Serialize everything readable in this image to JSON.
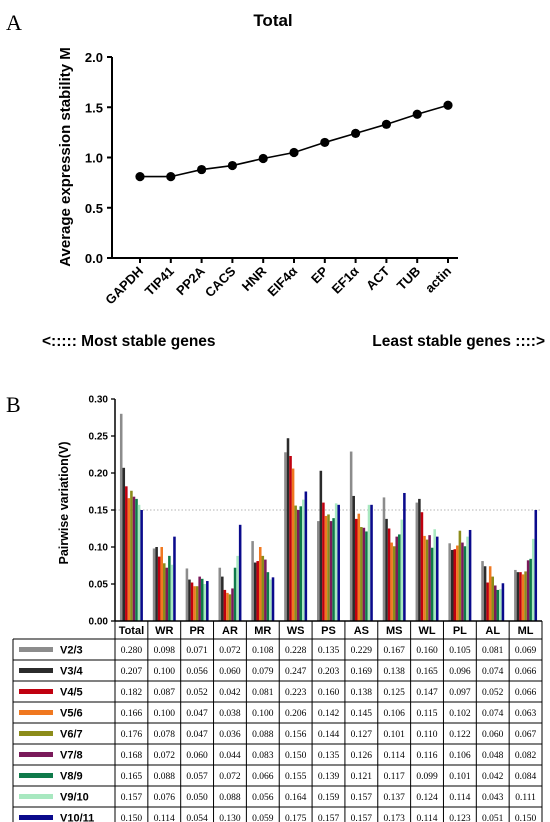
{
  "panel_a": {
    "letter": "A",
    "note_left": "<:::::  Most stable genes",
    "note_right": "Least stable genes ::::>"
  },
  "panel_b": {
    "letter": "B"
  },
  "chart_data": [
    {
      "type": "line",
      "title": "Total",
      "xlabel": "",
      "ylabel": "Average expression stability M",
      "ylim": [
        0.0,
        2.0
      ],
      "yticks": [
        "0.0",
        "0.5",
        "1.0",
        "1.5",
        "2.0"
      ],
      "categories": [
        "GAPDH",
        "TIP41",
        "PP2A",
        "CACS",
        "HNR",
        "EIF4α",
        "EP",
        "EF1α",
        "ACT",
        "TUB",
        "actin"
      ],
      "values": [
        0.81,
        0.81,
        0.88,
        0.92,
        0.99,
        1.05,
        1.15,
        1.24,
        1.33,
        1.43,
        1.52
      ],
      "grid": false,
      "color": "#000000"
    },
    {
      "type": "bar",
      "title": "",
      "xlabel": "",
      "ylabel": "Pairwise variation(V)",
      "ylim": [
        0.0,
        0.3
      ],
      "yticks": [
        "0.00",
        "0.05",
        "0.10",
        "0.15",
        "0.20",
        "0.25",
        "0.30"
      ],
      "reference_line": 0.15,
      "grid": false,
      "categories": [
        "Total",
        "WR",
        "PR",
        "AR",
        "MR",
        "WS",
        "PS",
        "AS",
        "MS",
        "WL",
        "PL",
        "AL",
        "ML"
      ],
      "series": [
        {
          "name": "V2/3",
          "color": "#8c8c8c",
          "values": [
            0.28,
            0.098,
            0.071,
            0.072,
            0.108,
            0.228,
            0.135,
            0.229,
            0.167,
            0.16,
            0.105,
            0.081,
            0.069
          ]
        },
        {
          "name": "V3/4",
          "color": "#2b2b2b",
          "values": [
            0.207,
            0.1,
            0.056,
            0.06,
            0.079,
            0.247,
            0.203,
            0.169,
            0.138,
            0.165,
            0.096,
            0.074,
            0.066
          ]
        },
        {
          "name": "V4/5",
          "color": "#c0000f",
          "values": [
            0.182,
            0.087,
            0.052,
            0.042,
            0.081,
            0.223,
            0.16,
            0.138,
            0.125,
            0.147,
            0.097,
            0.052,
            0.066
          ]
        },
        {
          "name": "V5/6",
          "color": "#f07820",
          "values": [
            0.166,
            0.1,
            0.047,
            0.038,
            0.1,
            0.206,
            0.142,
            0.145,
            0.106,
            0.115,
            0.102,
            0.074,
            0.063
          ]
        },
        {
          "name": "V6/7",
          "color": "#8c8c1a",
          "values": [
            0.176,
            0.078,
            0.047,
            0.036,
            0.088,
            0.156,
            0.144,
            0.127,
            0.101,
            0.11,
            0.122,
            0.06,
            0.067
          ]
        },
        {
          "name": "V7/8",
          "color": "#7a1a5a",
          "values": [
            0.168,
            0.072,
            0.06,
            0.044,
            0.083,
            0.15,
            0.135,
            0.126,
            0.114,
            0.116,
            0.106,
            0.048,
            0.082
          ]
        },
        {
          "name": "V8/9",
          "color": "#0f7a4a",
          "values": [
            0.165,
            0.088,
            0.057,
            0.072,
            0.066,
            0.155,
            0.139,
            0.121,
            0.117,
            0.099,
            0.101,
            0.042,
            0.084
          ]
        },
        {
          "name": "V9/10",
          "color": "#a8e8c0",
          "values": [
            0.157,
            0.076,
            0.05,
            0.088,
            0.056,
            0.164,
            0.159,
            0.157,
            0.137,
            0.124,
            0.114,
            0.043,
            0.111
          ]
        },
        {
          "name": "V10/11",
          "color": "#0a0a8c",
          "values": [
            0.15,
            0.114,
            0.054,
            0.13,
            0.059,
            0.175,
            0.157,
            0.157,
            0.173,
            0.114,
            0.123,
            0.051,
            0.15
          ]
        }
      ],
      "table_values": [
        [
          "0.280",
          "0.098",
          "0.071",
          "0.072",
          "0.108",
          "0.228",
          "0.135",
          "0.229",
          "0.167",
          "0.160",
          "0.105",
          "0.081",
          "0.069"
        ],
        [
          "0.207",
          "0.100",
          "0.056",
          "0.060",
          "0.079",
          "0.247",
          "0.203",
          "0.169",
          "0.138",
          "0.165",
          "0.096",
          "0.074",
          "0.066"
        ],
        [
          "0.182",
          "0.087",
          "0.052",
          "0.042",
          "0.081",
          "0.223",
          "0.160",
          "0.138",
          "0.125",
          "0.147",
          "0.097",
          "0.052",
          "0.066"
        ],
        [
          "0.166",
          "0.100",
          "0.047",
          "0.038",
          "0.100",
          "0.206",
          "0.142",
          "0.145",
          "0.106",
          "0.115",
          "0.102",
          "0.074",
          "0.063"
        ],
        [
          "0.176",
          "0.078",
          "0.047",
          "0.036",
          "0.088",
          "0.156",
          "0.144",
          "0.127",
          "0.101",
          "0.110",
          "0.122",
          "0.060",
          "0.067"
        ],
        [
          "0.168",
          "0.072",
          "0.060",
          "0.044",
          "0.083",
          "0.150",
          "0.135",
          "0.126",
          "0.114",
          "0.116",
          "0.106",
          "0.048",
          "0.082"
        ],
        [
          "0.165",
          "0.088",
          "0.057",
          "0.072",
          "0.066",
          "0.155",
          "0.139",
          "0.121",
          "0.117",
          "0.099",
          "0.101",
          "0.042",
          "0.084"
        ],
        [
          "0.157",
          "0.076",
          "0.050",
          "0.088",
          "0.056",
          "0.164",
          "0.159",
          "0.157",
          "0.137",
          "0.124",
          "0.114",
          "0.043",
          "0.111"
        ],
        [
          "0.150",
          "0.114",
          "0.054",
          "0.130",
          "0.059",
          "0.175",
          "0.157",
          "0.157",
          "0.173",
          "0.114",
          "0.123",
          "0.051",
          "0.150"
        ]
      ]
    }
  ]
}
